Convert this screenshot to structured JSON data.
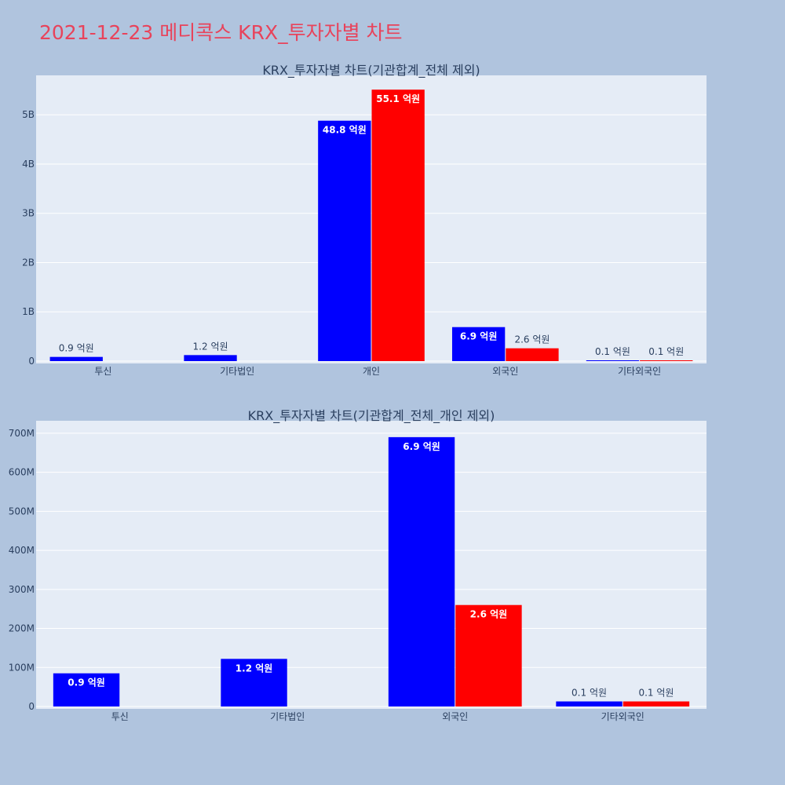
{
  "page_title": "2021-12-23 메디콕스 KRX_투자자별 차트",
  "colors": {
    "buy": "#0000ff",
    "sell": "#ff0000",
    "title": "#e8435b"
  },
  "chart_data": [
    {
      "type": "bar",
      "title": "KRX_투자자별 차트(기관합계_전체 제외)",
      "categories": [
        "투신",
        "기타법인",
        "개인",
        "외국인",
        "기타외국인"
      ],
      "ylim": [
        0,
        5800000000
      ],
      "yticks": [
        0,
        1000000000,
        2000000000,
        3000000000,
        4000000000,
        5000000000
      ],
      "ytick_labels": [
        "0",
        "1B",
        "2B",
        "3B",
        "4B",
        "5B"
      ],
      "grid": true,
      "series": [
        {
          "color": "#0000ff",
          "values": [
            85000000,
            122000000,
            4880000000,
            690000000,
            13000000
          ],
          "labels": [
            "0.9 억원",
            "1.2 억원",
            "48.8 억원",
            "6.9 억원",
            "0.1 억원"
          ]
        },
        {
          "color": "#ff0000",
          "values": [
            0,
            0,
            5510000000,
            260000000,
            13000000
          ],
          "labels": [
            "",
            "",
            "55.1 억원",
            "2.6 억원",
            "0.1 억원"
          ]
        }
      ]
    },
    {
      "type": "bar",
      "title": "KRX_투자자별 차트(기관합계_전체_개인 제외)",
      "categories": [
        "투신",
        "기타법인",
        "외국인",
        "기타외국인"
      ],
      "ylim": [
        0,
        732000000
      ],
      "yticks": [
        0,
        100000000,
        200000000,
        300000000,
        400000000,
        500000000,
        600000000,
        700000000
      ],
      "ytick_labels": [
        "0",
        "100M",
        "200M",
        "300M",
        "400M",
        "500M",
        "600M",
        "700M"
      ],
      "grid": true,
      "series": [
        {
          "color": "#0000ff",
          "values": [
            85000000,
            122000000,
            690000000,
            13000000
          ],
          "labels": [
            "0.9 억원",
            "1.2 억원",
            "6.9 억원",
            "0.1 억원"
          ]
        },
        {
          "color": "#ff0000",
          "values": [
            0,
            0,
            260000000,
            13000000
          ],
          "labels": [
            "",
            "",
            "2.6 억원",
            "0.1 억원"
          ]
        }
      ]
    }
  ]
}
